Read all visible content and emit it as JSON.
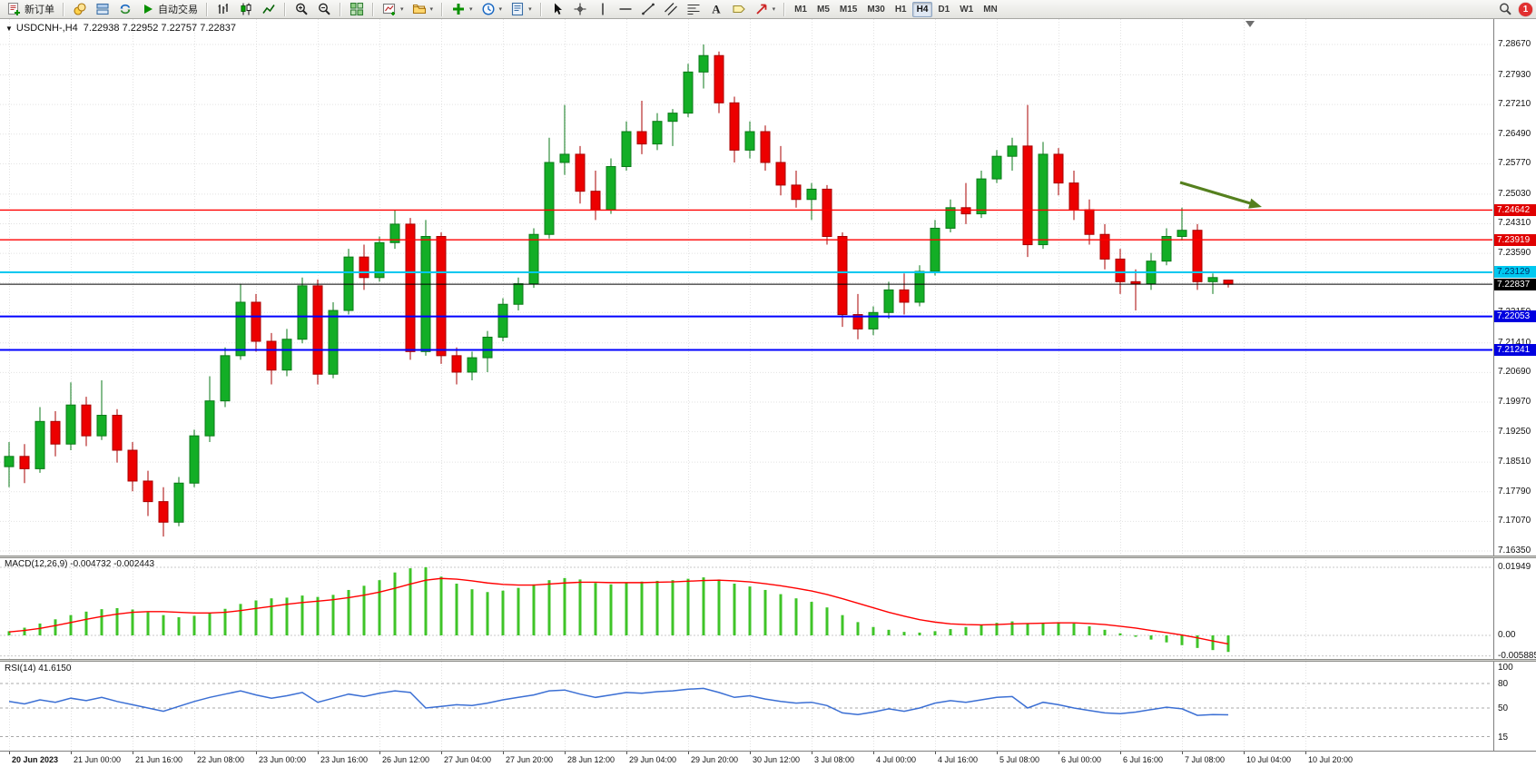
{
  "toolbar": {
    "groups": [
      {
        "name": "trade",
        "items": [
          {
            "name": "new-order-button",
            "icon": "new-order-icon",
            "label": "新订单",
            "dropdown": false
          }
        ]
      },
      {
        "name": "panels",
        "items": [
          {
            "name": "market-watch-button",
            "icon": "coins-icon",
            "dropdown": false
          },
          {
            "name": "data-window-button",
            "icon": "layers-icon",
            "dropdown": false
          },
          {
            "name": "terminal-button",
            "icon": "refresh-icon",
            "dropdown": false
          },
          {
            "name": "auto-trading-button",
            "icon": "play-icon",
            "label": "自动交易",
            "dropdown": false
          }
        ]
      },
      {
        "name": "chart-type",
        "items": [
          {
            "name": "bar-chart-button",
            "icon": "bar-chart-icon",
            "dropdown": false
          },
          {
            "name": "candle-chart-button",
            "icon": "candle-chart-icon",
            "dropdown": false
          },
          {
            "name": "line-chart-button",
            "icon": "line-chart-icon",
            "dropdown": false
          }
        ]
      },
      {
        "name": "zoom",
        "items": [
          {
            "name": "zoom-in-button",
            "icon": "zoom-in-icon",
            "dropdown": false
          },
          {
            "name": "zoom-out-button",
            "icon": "zoom-out-icon",
            "dropdown": false
          }
        ]
      },
      {
        "name": "windows",
        "items": [
          {
            "name": "tile-windows-button",
            "icon": "tile-icon",
            "dropdown": false
          }
        ]
      },
      {
        "name": "chart-management",
        "items": [
          {
            "name": "new-chart-button",
            "icon": "new-chart-icon",
            "dropdown": true
          },
          {
            "name": "profiles-button",
            "icon": "profiles-icon",
            "dropdown": true
          }
        ]
      },
      {
        "name": "tools",
        "items": [
          {
            "name": "indicators-button",
            "icon": "indicators-icon",
            "dropdown": true
          },
          {
            "name": "periods-button",
            "icon": "clock-icon",
            "dropdown": true
          },
          {
            "name": "templates-button",
            "icon": "template-icon",
            "dropdown": true
          }
        ]
      },
      {
        "name": "objects",
        "items": [
          {
            "name": "cursor-button",
            "icon": "cursor-icon",
            "dropdown": false
          },
          {
            "name": "crosshair-button",
            "icon": "crosshair-icon",
            "dropdown": false
          },
          {
            "name": "vertical-line-button",
            "icon": "vline-icon",
            "dropdown": false
          },
          {
            "name": "horizontal-line-button",
            "icon": "hline-icon",
            "dropdown": false
          },
          {
            "name": "trendline-button",
            "icon": "trendline-icon",
            "dropdown": false
          },
          {
            "name": "channel-button",
            "icon": "channel-icon",
            "dropdown": false
          },
          {
            "name": "fibonacci-button",
            "icon": "fibonacci-icon",
            "dropdown": false
          },
          {
            "name": "text-button",
            "icon": "text-icon",
            "dropdown": false
          },
          {
            "name": "label-button",
            "icon": "label-icon",
            "dropdown": false
          },
          {
            "name": "arrows-button",
            "icon": "arrow-icon",
            "dropdown": true
          }
        ]
      },
      {
        "name": "timeframes",
        "items": []
      }
    ],
    "timeframes": [
      "M1",
      "M5",
      "M15",
      "M30",
      "H1",
      "H4",
      "D1",
      "W1",
      "MN"
    ],
    "active_timeframe": "H4",
    "notification_badge": "1"
  },
  "chart_header": {
    "collapse_glyph": "▼"
  },
  "chart_data": [
    {
      "type": "candlestick",
      "symbol": "USDCNH",
      "timeframe": "H4",
      "title": "USDCNH-,H4",
      "ohlc_text": "7.22938 7.22952 7.22757 7.22837",
      "y_axis_labels": [
        "7.28670",
        "7.27930",
        "7.27210",
        "7.26490",
        "7.25770",
        "7.25030",
        "7.24310",
        "7.23590",
        "7.22870",
        "7.22150",
        "7.21410",
        "7.20690",
        "7.19970",
        "7.19250",
        "7.18510",
        "7.17790",
        "7.17070",
        "7.16350"
      ],
      "y_range": [
        7.1635,
        7.289
      ],
      "x_tick_labels": [
        "20 Jun 2023",
        "21 Jun 00:00",
        "21 Jun 16:00",
        "22 Jun 08:00",
        "23 Jun 00:00",
        "23 Jun 16:00",
        "26 Jun 12:00",
        "27 Jun 04:00",
        "27 Jun 20:00",
        "28 Jun 12:00",
        "29 Jun 04:00",
        "29 Jun 20:00",
        "30 Jun 12:00",
        "3 Jul 08:00",
        "4 Jul 00:00",
        "4 Jul 16:00",
        "5 Jul 08:00",
        "6 Jul 00:00",
        "6 Jul 16:00",
        "7 Jul 08:00",
        "10 Jul 04:00",
        "10 Jul 20:00"
      ],
      "candles": [
        [
          7.184,
          7.19,
          7.179,
          7.1865
        ],
        [
          7.1865,
          7.1895,
          7.18,
          7.1835
        ],
        [
          7.1835,
          7.1985,
          7.1825,
          7.195
        ],
        [
          7.195,
          7.1975,
          7.1865,
          7.1895
        ],
        [
          7.1895,
          7.2045,
          7.188,
          7.199
        ],
        [
          7.199,
          7.201,
          7.189,
          7.1915
        ],
        [
          7.1915,
          7.205,
          7.1905,
          7.1965
        ],
        [
          7.1965,
          7.198,
          7.185,
          7.188
        ],
        [
          7.188,
          7.19,
          7.178,
          7.1805
        ],
        [
          7.1805,
          7.183,
          7.172,
          7.1755
        ],
        [
          7.1755,
          7.179,
          7.167,
          7.1705
        ],
        [
          7.1705,
          7.1815,
          7.1695,
          7.18
        ],
        [
          7.18,
          7.193,
          7.179,
          7.1915
        ],
        [
          7.1915,
          7.206,
          7.19,
          7.2
        ],
        [
          7.2,
          7.213,
          7.1985,
          7.211
        ],
        [
          7.211,
          7.2285,
          7.21,
          7.224
        ],
        [
          7.224,
          7.226,
          7.212,
          7.2145
        ],
        [
          7.2145,
          7.2165,
          7.204,
          7.2075
        ],
        [
          7.2075,
          7.2175,
          7.206,
          7.215
        ],
        [
          7.215,
          7.23,
          7.214,
          7.228
        ],
        [
          7.228,
          7.2295,
          7.204,
          7.2065
        ],
        [
          7.2065,
          7.224,
          7.2055,
          7.222
        ],
        [
          7.222,
          7.237,
          7.221,
          7.235
        ],
        [
          7.235,
          7.238,
          7.227,
          7.23
        ],
        [
          7.23,
          7.24,
          7.229,
          7.2385
        ],
        [
          7.2385,
          7.2465,
          7.237,
          7.243
        ],
        [
          7.243,
          7.2445,
          7.21,
          7.212
        ],
        [
          7.212,
          7.244,
          7.211,
          7.24
        ],
        [
          7.24,
          7.241,
          7.209,
          7.211
        ],
        [
          7.211,
          7.213,
          7.204,
          7.207
        ],
        [
          7.207,
          7.212,
          7.205,
          7.2105
        ],
        [
          7.2105,
          7.217,
          7.207,
          7.2155
        ],
        [
          7.2155,
          7.225,
          7.2145,
          7.2235
        ],
        [
          7.2235,
          7.23,
          7.222,
          7.2285
        ],
        [
          7.2285,
          7.242,
          7.2275,
          7.2405
        ],
        [
          7.2405,
          7.264,
          7.2395,
          7.258
        ],
        [
          7.258,
          7.272,
          7.255,
          7.26
        ],
        [
          7.26,
          7.262,
          7.248,
          7.251
        ],
        [
          7.251,
          7.256,
          7.244,
          7.2465
        ],
        [
          7.2465,
          7.259,
          7.2455,
          7.257
        ],
        [
          7.257,
          7.268,
          7.256,
          7.2655
        ],
        [
          7.2655,
          7.273,
          7.26,
          7.2625
        ],
        [
          7.2625,
          7.27,
          7.261,
          7.268
        ],
        [
          7.268,
          7.271,
          7.262,
          7.27
        ],
        [
          7.27,
          7.282,
          7.269,
          7.28
        ],
        [
          7.28,
          7.2867,
          7.276,
          7.284
        ],
        [
          7.284,
          7.285,
          7.27,
          7.2725
        ],
        [
          7.2725,
          7.274,
          7.258,
          7.261
        ],
        [
          7.261,
          7.268,
          7.259,
          7.2655
        ],
        [
          7.2655,
          7.267,
          7.256,
          7.258
        ],
        [
          7.258,
          7.262,
          7.25,
          7.2525
        ],
        [
          7.2525,
          7.256,
          7.247,
          7.249
        ],
        [
          7.249,
          7.253,
          7.244,
          7.2515
        ],
        [
          7.2515,
          7.2525,
          7.238,
          7.24
        ],
        [
          7.24,
          7.241,
          7.218,
          7.221
        ],
        [
          7.221,
          7.226,
          7.215,
          7.2175
        ],
        [
          7.2175,
          7.223,
          7.216,
          7.2215
        ],
        [
          7.2215,
          7.229,
          7.22,
          7.227
        ],
        [
          7.227,
          7.231,
          7.221,
          7.224
        ],
        [
          7.224,
          7.233,
          7.223,
          7.2315
        ],
        [
          7.2315,
          7.244,
          7.2305,
          7.242
        ],
        [
          7.242,
          7.249,
          7.241,
          7.247
        ],
        [
          7.247,
          7.253,
          7.243,
          7.2455
        ],
        [
          7.2455,
          7.256,
          7.2445,
          7.254
        ],
        [
          7.254,
          7.261,
          7.253,
          7.2595
        ],
        [
          7.2595,
          7.264,
          7.256,
          7.262
        ],
        [
          7.262,
          7.272,
          7.235,
          7.238
        ],
        [
          7.238,
          7.263,
          7.237,
          7.26
        ],
        [
          7.26,
          7.2615,
          7.25,
          7.253
        ],
        [
          7.253,
          7.256,
          7.244,
          7.2465
        ],
        [
          7.2465,
          7.249,
          7.238,
          7.2405
        ],
        [
          7.2405,
          7.243,
          7.232,
          7.2345
        ],
        [
          7.2345,
          7.237,
          7.226,
          7.229
        ],
        [
          7.229,
          7.232,
          7.222,
          7.2285
        ],
        [
          7.2285,
          7.236,
          7.227,
          7.234
        ],
        [
          7.234,
          7.242,
          7.233,
          7.24
        ],
        [
          7.24,
          7.247,
          7.239,
          7.2415
        ],
        [
          7.2415,
          7.243,
          7.227,
          7.229
        ],
        [
          7.229,
          7.231,
          7.226,
          7.23
        ],
        [
          7.22938,
          7.22952,
          7.22757,
          7.22837
        ]
      ],
      "levels": [
        {
          "price": 7.24642,
          "label": "7.24642",
          "color": "#FF0000",
          "width": 1.4,
          "tag_bg": "#E00000",
          "tag_fg": "#FFFFFF"
        },
        {
          "price": 7.23919,
          "label": "7.23919",
          "color": "#FF0000",
          "width": 1.4,
          "tag_bg": "#E00000",
          "tag_fg": "#FFFFFF"
        },
        {
          "price": 7.23129,
          "label": "7.23129",
          "color": "#00C8F0",
          "width": 2,
          "tag_bg": "#00C8F0",
          "tag_fg": "#00306A"
        },
        {
          "price": 7.22837,
          "label": "7.22837",
          "color": "#000000",
          "width": 1,
          "tag_bg": "#000000",
          "tag_fg": "#FFFFFF"
        },
        {
          "price": 7.22053,
          "label": "7.22053",
          "color": "#0000FF",
          "width": 2,
          "tag_bg": "#0000E0",
          "tag_fg": "#FFFFFF"
        },
        {
          "price": 7.21241,
          "label": "7.21241",
          "color": "#0000FF",
          "width": 2,
          "tag_bg": "#0000E0",
          "tag_fg": "#FFFFFF"
        }
      ],
      "annotation_arrow": {
        "color": "#55801E"
      },
      "candle_colors": {
        "up_fill": "#13AE26",
        "up_stroke": "#0B7A18",
        "down_fill": "#EC0000",
        "down_stroke": "#A80000"
      }
    },
    {
      "type": "bar",
      "name": "MACD(12,26,9)",
      "values_display": "-0.004732 -0.002443",
      "y_axis_labels": [
        "0.01949",
        "0.00",
        "-0.005885"
      ],
      "histogram": [
        0.0012,
        0.0022,
        0.0034,
        0.0046,
        0.0058,
        0.0068,
        0.0075,
        0.0078,
        0.0074,
        0.0066,
        0.0058,
        0.0052,
        0.0056,
        0.0064,
        0.0076,
        0.009,
        0.01,
        0.0106,
        0.0108,
        0.0114,
        0.011,
        0.0116,
        0.013,
        0.0142,
        0.0158,
        0.018,
        0.0192,
        0.0195,
        0.0168,
        0.0148,
        0.0132,
        0.0124,
        0.0128,
        0.0136,
        0.0146,
        0.0158,
        0.0164,
        0.016,
        0.015,
        0.0146,
        0.015,
        0.0154,
        0.0156,
        0.0158,
        0.0162,
        0.0166,
        0.016,
        0.0148,
        0.014,
        0.013,
        0.0118,
        0.0106,
        0.0096,
        0.008,
        0.0058,
        0.0038,
        0.0024,
        0.0016,
        0.001,
        0.0008,
        0.0012,
        0.0018,
        0.0024,
        0.003,
        0.0036,
        0.004,
        0.0034,
        0.0036,
        0.0038,
        0.0034,
        0.0026,
        0.0016,
        0.0006,
        -0.0004,
        -0.0012,
        -0.002,
        -0.0028,
        -0.0036,
        -0.0042,
        -0.004732
      ],
      "signal": [
        0.001,
        0.0014,
        0.002,
        0.0028,
        0.0037,
        0.0046,
        0.0054,
        0.0061,
        0.0066,
        0.0068,
        0.0068,
        0.0066,
        0.0064,
        0.0064,
        0.0066,
        0.0071,
        0.0077,
        0.0083,
        0.0089,
        0.0094,
        0.0098,
        0.0102,
        0.0108,
        0.0115,
        0.0124,
        0.0135,
        0.0147,
        0.0158,
        0.0163,
        0.0161,
        0.0156,
        0.015,
        0.0146,
        0.0144,
        0.0144,
        0.0147,
        0.015,
        0.0152,
        0.0152,
        0.0151,
        0.0151,
        0.0151,
        0.0152,
        0.0153,
        0.0155,
        0.0157,
        0.0158,
        0.0156,
        0.0153,
        0.0148,
        0.0142,
        0.0135,
        0.0127,
        0.0117,
        0.0105,
        0.0092,
        0.0079,
        0.0066,
        0.0055,
        0.0045,
        0.0038,
        0.0033,
        0.0031,
        0.003,
        0.0031,
        0.0033,
        0.0034,
        0.0035,
        0.0036,
        0.0036,
        0.0034,
        0.0031,
        0.0026,
        0.0021,
        0.0014,
        0.0008,
        0.0001,
        -0.0007,
        -0.0016,
        -0.002443
      ],
      "colors": {
        "histogram": "#3FC428",
        "signal": "#FF0000"
      }
    },
    {
      "type": "line",
      "name": "RSI(14)",
      "value_display": "41.6150",
      "y_axis_labels": [
        "100",
        "80",
        "50",
        "15"
      ],
      "levels": [
        80,
        50,
        15
      ],
      "values": [
        58,
        55,
        60,
        57,
        62,
        59,
        63,
        58,
        54,
        50,
        46,
        52,
        58,
        63,
        67,
        71,
        66,
        62,
        65,
        69,
        57,
        62,
        67,
        64,
        68,
        71,
        69,
        50,
        52,
        54,
        53,
        56,
        60,
        63,
        66,
        71,
        72,
        67,
        63,
        66,
        69,
        68,
        70,
        71,
        73,
        74,
        69,
        63,
        65,
        61,
        58,
        56,
        57,
        53,
        44,
        42,
        45,
        49,
        46,
        50,
        56,
        59,
        57,
        60,
        63,
        64,
        50,
        57,
        54,
        50,
        47,
        44,
        43,
        45,
        48,
        51,
        49,
        41,
        42,
        41.615
      ],
      "color": "#3B6FD4"
    }
  ]
}
